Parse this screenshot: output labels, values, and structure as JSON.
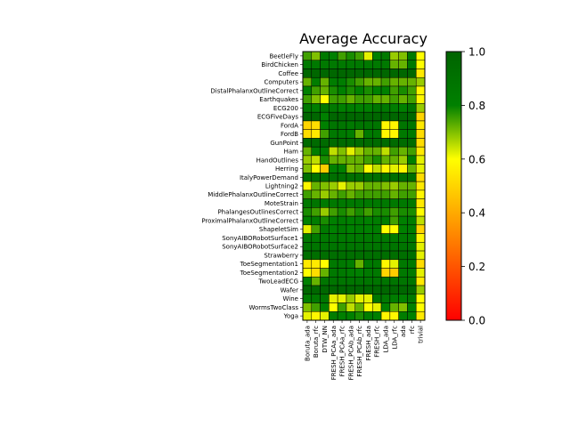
{
  "chart_data": {
    "type": "heatmap",
    "title": "Average Accuracy",
    "xlabel": "",
    "ylabel": "",
    "columns": [
      "Boruta_ada",
      "Boruta_rfc",
      "DTW_NN",
      "FRESH_PCAa_ada",
      "FRESH_PCAa_rfc",
      "FRESH_PCAb_ada",
      "FRESH_PCAb_rfc",
      "FRESH_ada",
      "FRESH_rfc",
      "LDA_ada",
      "LDA_rfc",
      "ada",
      "rfc",
      "trivial"
    ],
    "rows": [
      "BeetleFly",
      "BirdChicken",
      "Coffee",
      "Computers",
      "DistalPhalanxOutlineCorrect",
      "Earthquakes",
      "ECG200",
      "ECGFiveDays",
      "FordA",
      "FordB",
      "GunPoint",
      "Ham",
      "HandOutlines",
      "Herring",
      "ItalyPowerDemand",
      "Lightning2",
      "MiddlePhalanxOutlineCorrect",
      "MoteStrain",
      "PhalangesOutlinesCorrect",
      "ProximalPhalanxOutlineCorrect",
      "ShapeletSim",
      "SonyAIBORobotSurface1",
      "SonyAIBORobotSurface2",
      "Strawberry",
      "ToeSegmentation1",
      "ToeSegmentation2",
      "TwoLeadECG",
      "Wafer",
      "Wine",
      "WormsTwoClass",
      "Yoga"
    ],
    "values": [
      [
        0.75,
        0.7,
        0.85,
        0.8,
        0.75,
        0.78,
        0.75,
        0.62,
        0.8,
        0.85,
        0.68,
        0.7,
        0.85,
        0.6
      ],
      [
        0.85,
        0.85,
        0.85,
        0.85,
        0.85,
        0.85,
        0.85,
        0.85,
        0.85,
        0.85,
        0.72,
        0.72,
        0.85,
        0.6
      ],
      [
        0.98,
        0.98,
        0.98,
        0.98,
        0.98,
        0.98,
        0.98,
        0.98,
        0.98,
        0.98,
        0.98,
        0.98,
        0.98,
        0.55
      ],
      [
        0.72,
        0.82,
        0.72,
        0.82,
        0.82,
        0.78,
        0.75,
        0.72,
        0.72,
        0.75,
        0.72,
        0.72,
        0.72,
        0.68
      ],
      [
        0.8,
        0.75,
        0.72,
        0.78,
        0.8,
        0.78,
        0.8,
        0.78,
        0.8,
        0.8,
        0.75,
        0.78,
        0.75,
        0.58
      ],
      [
        0.75,
        0.7,
        0.6,
        0.75,
        0.75,
        0.72,
        0.75,
        0.75,
        0.72,
        0.72,
        0.75,
        0.72,
        0.75,
        0.58
      ],
      [
        0.85,
        0.82,
        0.88,
        0.85,
        0.8,
        0.82,
        0.8,
        0.8,
        0.88,
        0.85,
        0.82,
        0.8,
        0.88,
        0.68
      ],
      [
        0.98,
        0.98,
        0.8,
        0.98,
        0.98,
        0.98,
        0.98,
        0.98,
        0.98,
        0.98,
        0.98,
        0.98,
        0.98,
        0.5
      ],
      [
        0.5,
        0.52,
        0.8,
        0.88,
        0.88,
        0.85,
        0.88,
        0.88,
        0.88,
        0.58,
        0.58,
        0.88,
        0.88,
        0.55
      ],
      [
        0.52,
        0.55,
        0.75,
        0.85,
        0.85,
        0.82,
        0.72,
        0.85,
        0.85,
        0.58,
        0.58,
        0.85,
        0.85,
        0.52
      ],
      [
        0.95,
        0.95,
        0.95,
        0.95,
        0.95,
        0.95,
        0.95,
        0.95,
        0.95,
        0.95,
        0.95,
        0.95,
        0.95,
        0.52
      ],
      [
        0.72,
        0.82,
        0.82,
        0.65,
        0.7,
        0.62,
        0.68,
        0.72,
        0.72,
        0.65,
        0.75,
        0.72,
        0.75,
        0.55
      ],
      [
        0.68,
        0.65,
        0.78,
        0.72,
        0.72,
        0.72,
        0.72,
        0.75,
        0.78,
        0.72,
        0.72,
        0.68,
        0.8,
        0.62
      ],
      [
        0.7,
        0.6,
        0.48,
        0.8,
        0.8,
        0.7,
        0.72,
        0.6,
        0.65,
        0.58,
        0.62,
        0.58,
        0.72,
        0.62
      ],
      [
        0.92,
        0.92,
        0.92,
        0.92,
        0.92,
        0.92,
        0.92,
        0.92,
        0.92,
        0.92,
        0.92,
        0.92,
        0.92,
        0.52
      ],
      [
        0.58,
        0.72,
        0.7,
        0.68,
        0.62,
        0.68,
        0.68,
        0.72,
        0.72,
        0.7,
        0.68,
        0.72,
        0.72,
        0.55
      ],
      [
        0.75,
        0.72,
        0.68,
        0.72,
        0.75,
        0.72,
        0.75,
        0.75,
        0.75,
        0.75,
        0.72,
        0.75,
        0.75,
        0.58
      ],
      [
        0.85,
        0.88,
        0.85,
        0.85,
        0.85,
        0.85,
        0.85,
        0.85,
        0.85,
        0.85,
        0.85,
        0.85,
        0.85,
        0.55
      ],
      [
        0.78,
        0.75,
        0.68,
        0.75,
        0.78,
        0.75,
        0.78,
        0.75,
        0.78,
        0.78,
        0.75,
        0.78,
        0.78,
        0.6
      ],
      [
        0.8,
        0.82,
        0.78,
        0.8,
        0.82,
        0.8,
        0.82,
        0.8,
        0.82,
        0.82,
        0.75,
        0.8,
        0.82,
        0.65
      ],
      [
        0.62,
        0.75,
        0.85,
        0.8,
        0.85,
        0.8,
        0.82,
        0.8,
        0.82,
        0.6,
        0.6,
        0.8,
        0.82,
        0.5
      ],
      [
        0.85,
        0.85,
        0.85,
        0.85,
        0.85,
        0.85,
        0.85,
        0.85,
        0.85,
        0.85,
        0.85,
        0.85,
        0.85,
        0.58
      ],
      [
        0.88,
        0.88,
        0.88,
        0.88,
        0.88,
        0.88,
        0.88,
        0.88,
        0.88,
        0.88,
        0.88,
        0.88,
        0.88,
        0.62
      ],
      [
        0.92,
        0.92,
        0.92,
        0.92,
        0.92,
        0.92,
        0.92,
        0.92,
        0.92,
        0.92,
        0.92,
        0.92,
        0.92,
        0.62
      ],
      [
        0.55,
        0.55,
        0.6,
        0.85,
        0.85,
        0.82,
        0.72,
        0.85,
        0.85,
        0.58,
        0.62,
        0.85,
        0.85,
        0.52
      ],
      [
        0.6,
        0.52,
        0.72,
        0.85,
        0.85,
        0.82,
        0.8,
        0.85,
        0.85,
        0.5,
        0.48,
        0.85,
        0.85,
        0.62
      ],
      [
        0.8,
        0.72,
        0.88,
        0.88,
        0.88,
        0.88,
        0.88,
        0.88,
        0.88,
        0.88,
        0.88,
        0.88,
        0.88,
        0.55
      ],
      [
        0.98,
        0.98,
        0.98,
        0.98,
        0.98,
        0.98,
        0.98,
        0.98,
        0.98,
        0.98,
        0.98,
        0.98,
        0.98,
        0.68
      ],
      [
        0.82,
        0.85,
        0.88,
        0.62,
        0.62,
        0.68,
        0.62,
        0.62,
        0.88,
        0.85,
        0.82,
        0.8,
        0.85,
        0.6
      ],
      [
        0.7,
        0.75,
        0.82,
        0.6,
        0.75,
        0.65,
        0.72,
        0.6,
        0.62,
        0.8,
        0.72,
        0.7,
        0.8,
        0.6
      ],
      [
        0.62,
        0.58,
        0.62,
        0.82,
        0.8,
        0.8,
        0.78,
        0.82,
        0.8,
        0.58,
        0.58,
        0.82,
        0.8,
        0.55
      ]
    ],
    "colorbar": {
      "range": [
        0.0,
        1.0
      ],
      "ticks": [
        "0.0",
        "0.2",
        "0.4",
        "0.6",
        "0.8",
        "1.0"
      ],
      "colors": [
        "#ff0000",
        "#ffff00",
        "#008000"
      ]
    },
    "grid": true,
    "legend": "colorbar-right"
  }
}
